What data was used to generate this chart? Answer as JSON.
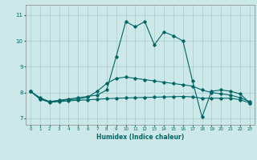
{
  "xlabel": "Humidex (Indice chaleur)",
  "bg_color": "#cce8e8",
  "grid_color": "#aacccc",
  "line_color": "#006666",
  "xlim": [
    -0.5,
    23.5
  ],
  "ylim": [
    6.75,
    11.4
  ],
  "xticks": [
    0,
    1,
    2,
    3,
    4,
    5,
    6,
    7,
    8,
    9,
    10,
    11,
    12,
    13,
    14,
    15,
    16,
    17,
    18,
    19,
    20,
    21,
    22,
    23
  ],
  "yticks": [
    7,
    8,
    9,
    10,
    11
  ],
  "series1_x": [
    0,
    1,
    2,
    3,
    4,
    5,
    6,
    7,
    8,
    9,
    10,
    11,
    12,
    13,
    14,
    15,
    16,
    17,
    18,
    19,
    20,
    21,
    22,
    23
  ],
  "series1_y": [
    8.05,
    7.8,
    7.65,
    7.7,
    7.75,
    7.8,
    7.85,
    7.9,
    8.1,
    9.4,
    10.75,
    10.55,
    10.75,
    9.85,
    10.35,
    10.2,
    10.0,
    8.45,
    7.05,
    8.05,
    8.1,
    8.05,
    7.95,
    7.6
  ],
  "series2_x": [
    0,
    1,
    2,
    3,
    4,
    5,
    6,
    7,
    8,
    9,
    10,
    11,
    12,
    13,
    14,
    15,
    16,
    17,
    18,
    19,
    20,
    21,
    22,
    23
  ],
  "series2_y": [
    8.05,
    7.75,
    7.65,
    7.68,
    7.72,
    7.75,
    7.82,
    8.05,
    8.35,
    8.55,
    8.6,
    8.55,
    8.5,
    8.45,
    8.4,
    8.35,
    8.3,
    8.25,
    8.1,
    8.0,
    7.95,
    7.9,
    7.8,
    7.65
  ],
  "series3_x": [
    0,
    1,
    2,
    3,
    4,
    5,
    6,
    7,
    8,
    9,
    10,
    11,
    12,
    13,
    14,
    15,
    16,
    17,
    18,
    19,
    20,
    21,
    22,
    23
  ],
  "series3_y": [
    8.05,
    7.75,
    7.62,
    7.65,
    7.68,
    7.7,
    7.72,
    7.74,
    7.76,
    7.78,
    7.79,
    7.8,
    7.81,
    7.82,
    7.83,
    7.84,
    7.85,
    7.83,
    7.78,
    7.78,
    7.78,
    7.78,
    7.72,
    7.6
  ]
}
